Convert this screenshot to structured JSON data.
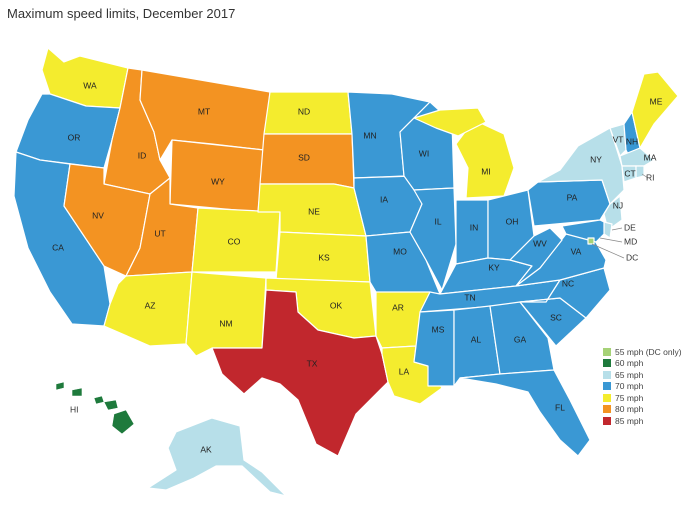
{
  "title": "Maximum speed limits, December 2017",
  "colors": {
    "55": "#a6d277",
    "60": "#1e7a3c",
    "65": "#b7dfe9",
    "70": "#3a98d4",
    "75": "#f4ec2e",
    "80": "#f39322",
    "85": "#c1272d"
  },
  "legend": [
    {
      "label": "55 mph (DC only)",
      "key": "55"
    },
    {
      "label": "60 mph",
      "key": "60"
    },
    {
      "label": "65 mph",
      "key": "65"
    },
    {
      "label": "70 mph",
      "key": "70"
    },
    {
      "label": "75 mph",
      "key": "75"
    },
    {
      "label": "80 mph",
      "key": "80"
    },
    {
      "label": "85 mph",
      "key": "85"
    }
  ],
  "states": [
    {
      "abbr": "WA",
      "mph": 75
    },
    {
      "abbr": "OR",
      "mph": 70
    },
    {
      "abbr": "CA",
      "mph": 70
    },
    {
      "abbr": "ID",
      "mph": 80
    },
    {
      "abbr": "NV",
      "mph": 80
    },
    {
      "abbr": "MT",
      "mph": 80
    },
    {
      "abbr": "WY",
      "mph": 80
    },
    {
      "abbr": "UT",
      "mph": 80
    },
    {
      "abbr": "AZ",
      "mph": 75
    },
    {
      "abbr": "CO",
      "mph": 75
    },
    {
      "abbr": "NM",
      "mph": 75
    },
    {
      "abbr": "ND",
      "mph": 75
    },
    {
      "abbr": "SD",
      "mph": 80
    },
    {
      "abbr": "NE",
      "mph": 75
    },
    {
      "abbr": "KS",
      "mph": 75
    },
    {
      "abbr": "OK",
      "mph": 75
    },
    {
      "abbr": "TX",
      "mph": 85
    },
    {
      "abbr": "MN",
      "mph": 70
    },
    {
      "abbr": "IA",
      "mph": 70
    },
    {
      "abbr": "MO",
      "mph": 70
    },
    {
      "abbr": "AR",
      "mph": 75
    },
    {
      "abbr": "LA",
      "mph": 75
    },
    {
      "abbr": "WI",
      "mph": 70
    },
    {
      "abbr": "IL",
      "mph": 70
    },
    {
      "abbr": "MI",
      "mph": 75
    },
    {
      "abbr": "IN",
      "mph": 70
    },
    {
      "abbr": "OH",
      "mph": 70
    },
    {
      "abbr": "KY",
      "mph": 70
    },
    {
      "abbr": "TN",
      "mph": 70
    },
    {
      "abbr": "MS",
      "mph": 70
    },
    {
      "abbr": "AL",
      "mph": 70
    },
    {
      "abbr": "GA",
      "mph": 70
    },
    {
      "abbr": "FL",
      "mph": 70
    },
    {
      "abbr": "SC",
      "mph": 70
    },
    {
      "abbr": "NC",
      "mph": 70
    },
    {
      "abbr": "VA",
      "mph": 70
    },
    {
      "abbr": "WV",
      "mph": 70
    },
    {
      "abbr": "PA",
      "mph": 70
    },
    {
      "abbr": "NY",
      "mph": 65
    },
    {
      "abbr": "VT",
      "mph": 65
    },
    {
      "abbr": "NH",
      "mph": 70
    },
    {
      "abbr": "ME",
      "mph": 75
    },
    {
      "abbr": "MA",
      "mph": 65
    },
    {
      "abbr": "RI",
      "mph": 65
    },
    {
      "abbr": "CT",
      "mph": 65
    },
    {
      "abbr": "NJ",
      "mph": 65
    },
    {
      "abbr": "DE",
      "mph": 65
    },
    {
      "abbr": "MD",
      "mph": 70
    },
    {
      "abbr": "DC",
      "mph": 55
    },
    {
      "abbr": "AK",
      "mph": 65
    },
    {
      "abbr": "HI",
      "mph": 60
    }
  ]
}
